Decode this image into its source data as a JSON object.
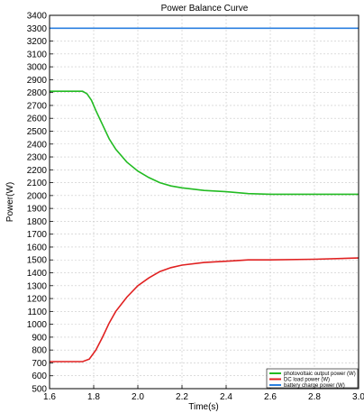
{
  "chart_data": {
    "type": "line",
    "title": "Power Balance Curve",
    "xlabel": "Time(s)",
    "ylabel": "Power(W)",
    "xlim": [
      1.6,
      3.0
    ],
    "ylim": [
      500,
      3400
    ],
    "xticks": [
      1.6,
      1.8,
      2.0,
      2.2,
      2.4,
      2.6,
      2.8,
      3.0
    ],
    "yticks": [
      500,
      600,
      700,
      800,
      900,
      1000,
      1100,
      1200,
      1300,
      1400,
      1500,
      1600,
      1700,
      1800,
      1900,
      2000,
      2100,
      2200,
      2300,
      2400,
      2500,
      2600,
      2700,
      2800,
      2900,
      3000,
      3100,
      3200,
      3300,
      3400
    ],
    "xtick_labels": [
      "1.6",
      "1.8",
      "2.0",
      "2.2",
      "2.4",
      "2.6",
      "2.8",
      "3.0"
    ],
    "ytick_labels": [
      "500",
      "600",
      "700",
      "800",
      "900",
      "1000",
      "1100",
      "1200",
      "1300",
      "1400",
      "1500",
      "1600",
      "1700",
      "1800",
      "1900",
      "2000",
      "2100",
      "2200",
      "2300",
      "2400",
      "2500",
      "2600",
      "2700",
      "2800",
      "2900",
      "3000",
      "3100",
      "3200",
      "3300",
      "3400"
    ],
    "grid": true,
    "legend_position": "bottom-right",
    "series": [
      {
        "name": "photovoltaic output power (W)",
        "color": "#22bb22",
        "x": [
          1.6,
          1.75,
          1.77,
          1.79,
          1.81,
          1.84,
          1.87,
          1.9,
          1.95,
          2.0,
          2.05,
          2.1,
          2.15,
          2.2,
          2.3,
          2.4,
          2.5,
          2.6,
          2.8,
          3.0
        ],
        "y": [
          2810,
          2810,
          2790,
          2740,
          2660,
          2550,
          2440,
          2360,
          2260,
          2190,
          2140,
          2100,
          2075,
          2060,
          2040,
          2030,
          2015,
          2010,
          2010,
          2010
        ]
      },
      {
        "name": "DC load power (W)",
        "color": "#e02020",
        "x": [
          1.6,
          1.75,
          1.78,
          1.81,
          1.84,
          1.87,
          1.9,
          1.95,
          2.0,
          2.05,
          2.1,
          2.15,
          2.2,
          2.3,
          2.4,
          2.5,
          2.6,
          2.8,
          3.0
        ],
        "y": [
          710,
          710,
          730,
          800,
          900,
          1010,
          1100,
          1210,
          1300,
          1360,
          1410,
          1440,
          1460,
          1480,
          1490,
          1500,
          1500,
          1505,
          1515
        ]
      },
      {
        "name": "battery charge power (W)",
        "color": "#2a7fe0",
        "x": [
          1.6,
          3.0
        ],
        "y": [
          3300,
          3300
        ]
      }
    ]
  }
}
